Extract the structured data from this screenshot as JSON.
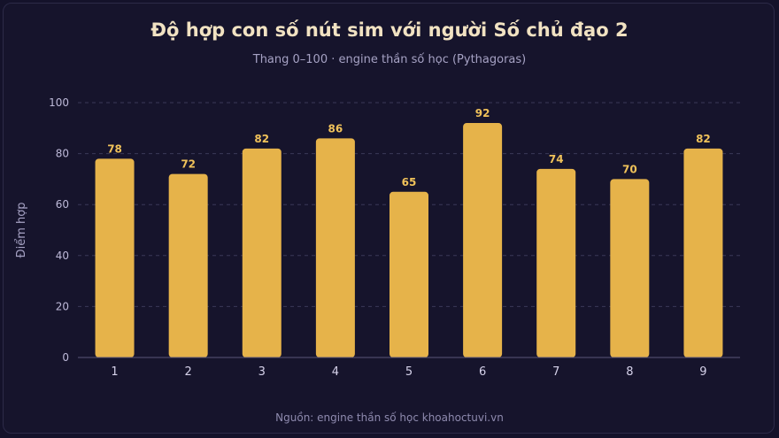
{
  "header": {
    "title": "Độ hợp con số nút sim với người Số chủ đạo 2",
    "subtitle": "Thang 0–100 · engine thần số học (Pythagoras)"
  },
  "footer": {
    "source": "Nguồn: engine thần số học khoahoctuvi.vn"
  },
  "colors": {
    "bar": "#e6b34a",
    "value_label": "#f0c25a",
    "background": "#16142c"
  },
  "chart_data": {
    "type": "bar",
    "title": "Độ hợp con số nút sim với người Số chủ đạo 2",
    "subtitle": "Thang 0–100 · engine thần số học (Pythagoras)",
    "xlabel": "",
    "ylabel": "Điểm hợp",
    "categories": [
      "1",
      "2",
      "3",
      "4",
      "5",
      "6",
      "7",
      "8",
      "9"
    ],
    "values": [
      78,
      72,
      82,
      86,
      65,
      92,
      74,
      70,
      82
    ],
    "yticks": [
      0,
      20,
      40,
      60,
      80,
      100
    ],
    "ylim": [
      0,
      100
    ],
    "grid": true,
    "data_labels": true
  }
}
